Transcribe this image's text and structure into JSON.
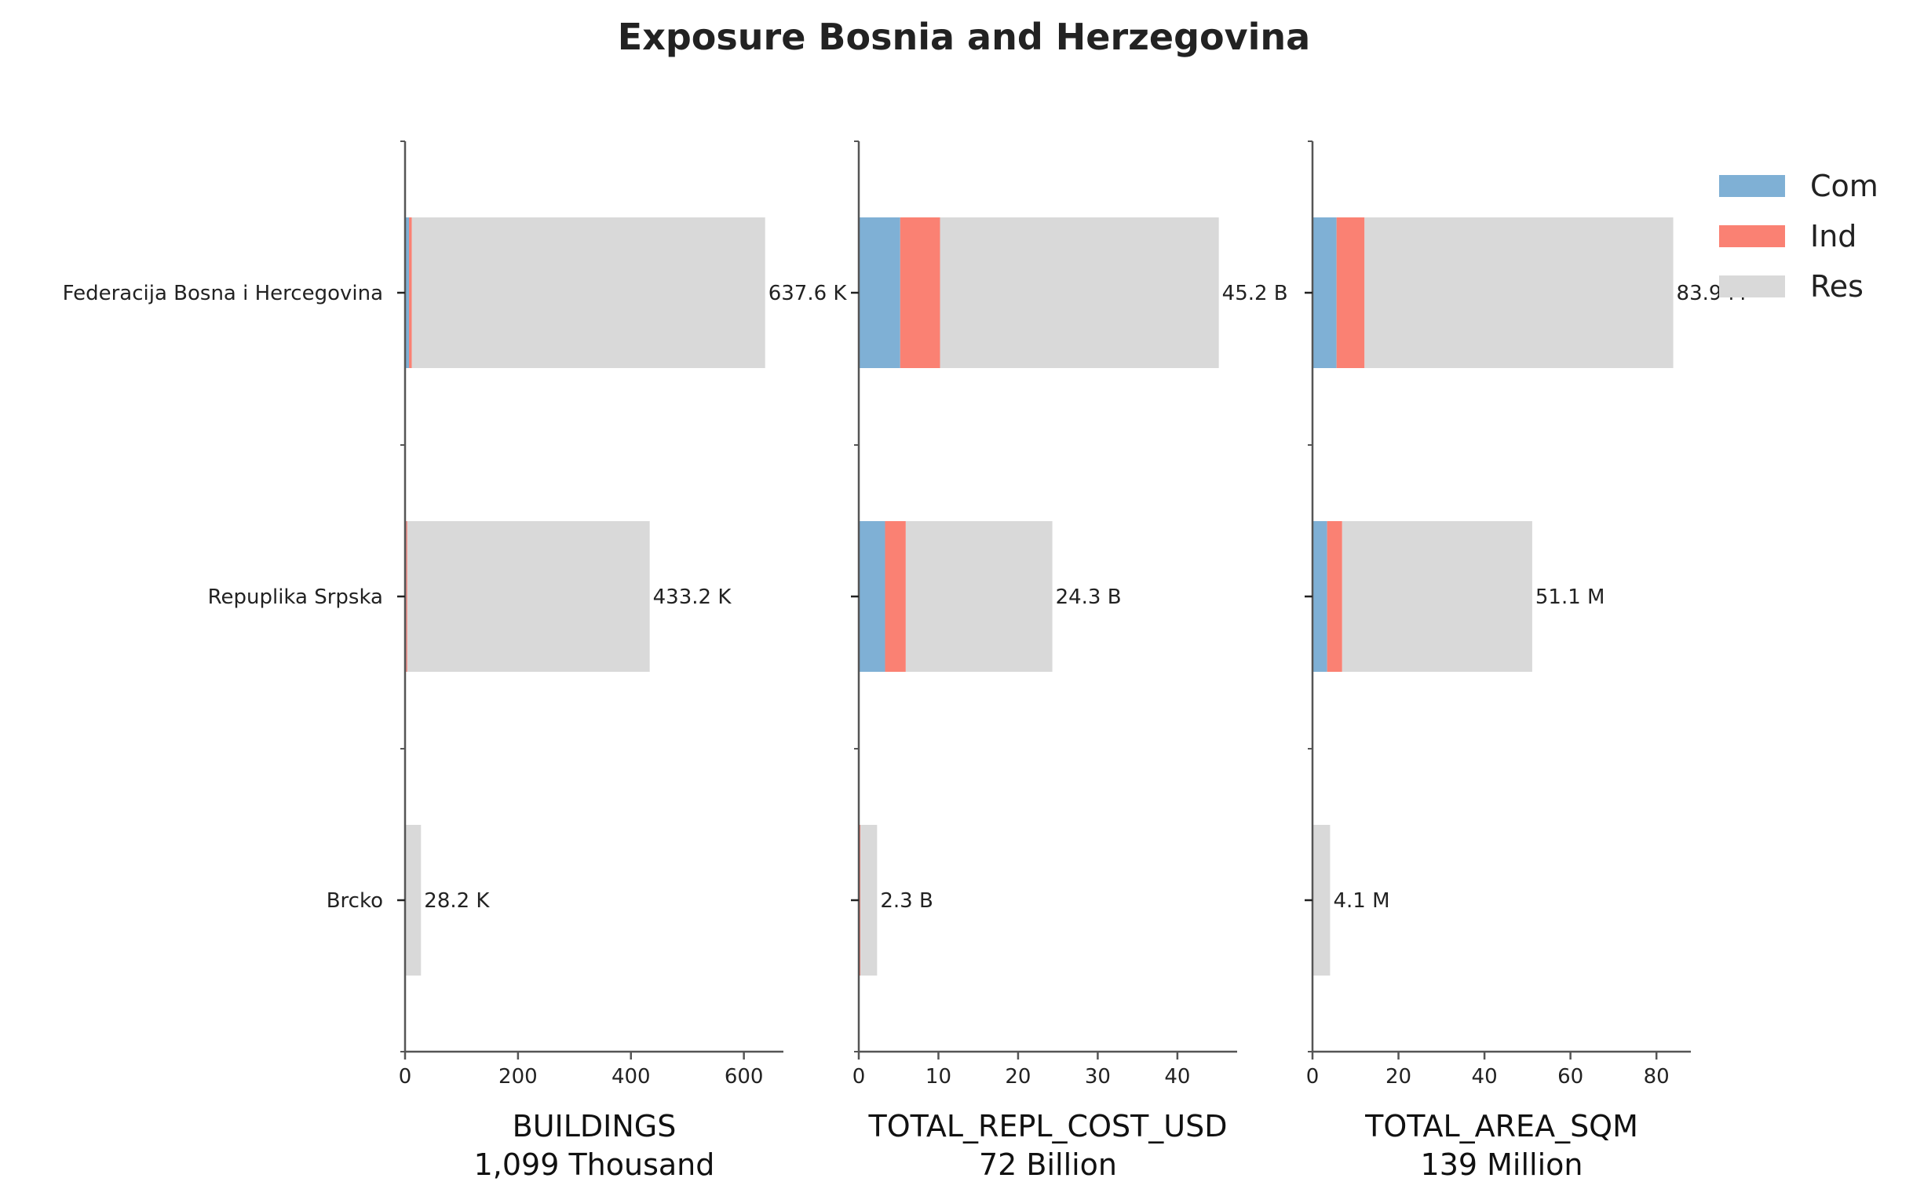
{
  "title": "Exposure Bosnia and Herzegovina",
  "colors": {
    "Com": "#7fb0d5",
    "Ind": "#fa8173",
    "Res": "#d9d9d9",
    "axis": "#555555",
    "text": "#222222"
  },
  "legend": [
    {
      "key": "Com",
      "label": "Com"
    },
    {
      "key": "Ind",
      "label": "Ind"
    },
    {
      "key": "Res",
      "label": "Res"
    }
  ],
  "chart_data": {
    "type": "bar",
    "orientation": "horizontal",
    "stacked": true,
    "title": "Exposure Bosnia and Herzegovina",
    "categories": [
      "Federacija Bosna i Hercegovina",
      "Repuplika Srpska",
      "Brcko"
    ],
    "legend_position": "top-right",
    "grid": false,
    "panels": [
      {
        "metric": "BUILDINGS",
        "subtitle": "1,099 Thousand",
        "xlim": [
          0,
          670
        ],
        "xticks": [
          0,
          200,
          400,
          600
        ],
        "series": [
          {
            "name": "Com",
            "values": [
              7,
              2,
              0.2
            ]
          },
          {
            "name": "Ind",
            "values": [
              5,
              2,
              0.1
            ]
          },
          {
            "name": "Res",
            "values": [
              625.6,
              429.2,
              27.9
            ]
          }
        ],
        "totals": [
          637.6,
          433.2,
          28.2
        ],
        "labels": [
          "637.6 K",
          "433.2 K",
          "28.2 K"
        ]
      },
      {
        "metric": "TOTAL_REPL_COST_USD",
        "subtitle": "72 Billion",
        "xlim": [
          0,
          47.5
        ],
        "xticks": [
          0,
          10,
          20,
          30,
          40
        ],
        "series": [
          {
            "name": "Com",
            "values": [
              5.2,
              3.3,
              0.1
            ]
          },
          {
            "name": "Ind",
            "values": [
              5.0,
              2.6,
              0.1
            ]
          },
          {
            "name": "Res",
            "values": [
              35.0,
              18.4,
              2.1
            ]
          }
        ],
        "totals": [
          45.2,
          24.3,
          2.3
        ],
        "labels": [
          "45.2 B",
          "24.3 B",
          "2.3 B"
        ]
      },
      {
        "metric": "TOTAL_AREA_SQM",
        "subtitle": "139 Million",
        "xlim": [
          0,
          88
        ],
        "xticks": [
          0,
          20,
          40,
          60,
          80
        ],
        "series": [
          {
            "name": "Com",
            "values": [
              5.6,
              3.4,
              0.1
            ]
          },
          {
            "name": "Ind",
            "values": [
              6.5,
              3.5,
              0.1
            ]
          },
          {
            "name": "Res",
            "values": [
              71.8,
              44.2,
              3.9
            ]
          }
        ],
        "totals": [
          83.9,
          51.1,
          4.1
        ],
        "labels": [
          "83.9 M",
          "51.1 M",
          "4.1 M"
        ]
      }
    ]
  }
}
